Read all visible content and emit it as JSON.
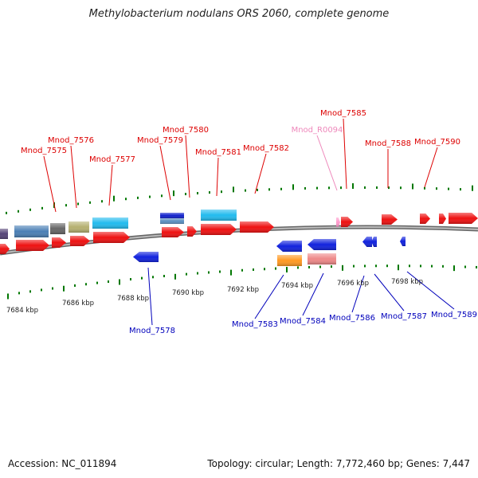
{
  "title": "Methylobacterium nodulans ORS 2060, complete genome",
  "footer": {
    "accession": "Accession: NC_011894",
    "summary": "Topology: circular; Length: 7,772,460 bp; Genes: 7,447"
  },
  "colors": {
    "forward_label": "#dd0000",
    "reverse_label": "#0000bb",
    "rna_label": "#ee88bb",
    "tick": "#007700",
    "backbone": "#777777"
  },
  "ticks": [
    "7684 kbp",
    "7686 kbp",
    "7688 kbp",
    "7690 kbp",
    "7692 kbp",
    "7694 kbp",
    "7696 kbp",
    "7698 kbp"
  ],
  "forward_genes": [
    "Mnod_7575",
    "Mnod_7576",
    "Mnod_7577",
    "Mnod_7579",
    "Mnod_7580",
    "Mnod_7581",
    "Mnod_7582",
    "Mnod_R0094",
    "Mnod_7585",
    "Mnod_7588",
    "Mnod_7590"
  ],
  "reverse_genes": [
    "Mnod_7578",
    "Mnod_7583",
    "Mnod_7584",
    "Mnod_7586",
    "Mnod_7587",
    "Mnod_7589"
  ]
}
